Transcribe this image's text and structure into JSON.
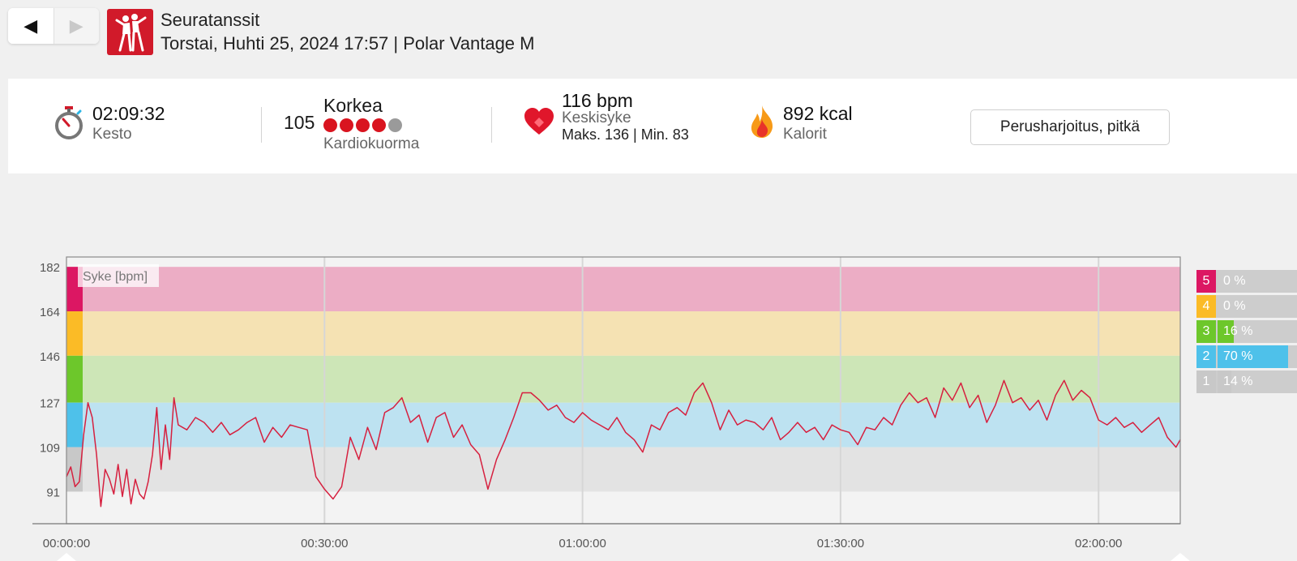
{
  "nav": {
    "prev_icon": "triangle-left-icon",
    "next_icon": "triangle-right-icon"
  },
  "header": {
    "sport_icon": "dancing-couple-icon",
    "sport_name": "Seuratanssit",
    "date_device": "Torstai, Huhti 25, 2024 17:57 | Polar Vantage M"
  },
  "summary": {
    "duration": {
      "value": "02:09:32",
      "label": "Kesto",
      "icon": "stopwatch-icon"
    },
    "cardio_load": {
      "value": "105",
      "level": "Korkea",
      "label": "Kardiokuorma",
      "filled_dots": 4,
      "total_dots": 5
    },
    "heart_rate": {
      "value": "116 bpm",
      "label": "Keskisyke",
      "minmax": "Maks. 136  |  Min. 83",
      "icon": "heart-icon"
    },
    "calories": {
      "value": "892 kcal",
      "label": "Kalorit",
      "icon": "flame-icon"
    },
    "training_benefit": "Perusharjoitus, pitkä"
  },
  "colors": {
    "zone1": "#c8c8c8",
    "zone2": "#4ec1ea",
    "zone3": "#6dc72b",
    "zone4": "#fbbb26",
    "zone5": "#dc1763",
    "line": "#d6203f",
    "accent": "#d11a2a"
  },
  "zones": [
    {
      "num": "5",
      "pct": "0 %",
      "fraction": 0.0
    },
    {
      "num": "4",
      "pct": "0 %",
      "fraction": 0.0
    },
    {
      "num": "3",
      "pct": "16 %",
      "fraction": 0.16
    },
    {
      "num": "2",
      "pct": "70 %",
      "fraction": 0.7
    },
    {
      "num": "1",
      "pct": "14 %",
      "fraction": 0.14
    }
  ],
  "chart_data": {
    "type": "line",
    "series_label": "Syke [bpm]",
    "y_ticks": [
      "182",
      "164",
      "146",
      "127",
      "109",
      "91"
    ],
    "x_ticks": [
      "00:00:00",
      "00:30:00",
      "01:00:00",
      "01:30:00",
      "02:00:00"
    ],
    "x_unit": "minutes",
    "x_range": [
      0,
      129.5
    ],
    "y_range": [
      78,
      186
    ],
    "zone_bands": [
      {
        "zone": 5,
        "from": 164,
        "to": 182
      },
      {
        "zone": 4,
        "from": 146,
        "to": 164
      },
      {
        "zone": 3,
        "from": 127,
        "to": 146
      },
      {
        "zone": 2,
        "from": 109,
        "to": 127
      },
      {
        "zone": 1,
        "from": 91,
        "to": 109
      }
    ],
    "x": [
      0,
      0.5,
      1,
      1.5,
      2,
      2.5,
      3,
      3.5,
      4,
      4.5,
      5,
      5.5,
      6,
      6.5,
      7,
      7.5,
      8,
      8.5,
      9,
      9.5,
      10,
      10.5,
      11,
      11.5,
      12,
      12.5,
      13,
      14,
      15,
      16,
      17,
      18,
      19,
      20,
      21,
      22,
      23,
      24,
      25,
      26,
      27,
      28,
      29,
      30,
      31,
      32,
      33,
      34,
      35,
      36,
      37,
      38,
      39,
      40,
      41,
      42,
      43,
      44,
      45,
      46,
      47,
      48,
      49,
      50,
      51,
      52,
      53,
      54,
      55,
      56,
      57,
      58,
      59,
      60,
      61,
      62,
      63,
      64,
      65,
      66,
      67,
      68,
      69,
      70,
      71,
      72,
      73,
      74,
      75,
      76,
      77,
      78,
      79,
      80,
      81,
      82,
      83,
      84,
      85,
      86,
      87,
      88,
      89,
      90,
      91,
      92,
      93,
      94,
      95,
      96,
      97,
      98,
      99,
      100,
      101,
      102,
      103,
      104,
      105,
      106,
      107,
      108,
      109,
      110,
      111,
      112,
      113,
      114,
      115,
      116,
      117,
      118,
      119,
      120,
      121,
      122,
      123,
      124,
      125,
      126,
      127,
      128,
      129,
      129.5
    ],
    "y": [
      97,
      101,
      93,
      95,
      114,
      127,
      121,
      106,
      85,
      100,
      96,
      90,
      102,
      89,
      100,
      86,
      96,
      90,
      88,
      95,
      106,
      125,
      100,
      118,
      104,
      129,
      118,
      116,
      121,
      119,
      115,
      119,
      114,
      116,
      119,
      121,
      111,
      117,
      113,
      118,
      117,
      116,
      97,
      92,
      88,
      93,
      113,
      104,
      117,
      108,
      123,
      125,
      129,
      119,
      122,
      111,
      121,
      123,
      113,
      118,
      110,
      106,
      92,
      104,
      112,
      121,
      131,
      131,
      128,
      124,
      126,
      121,
      119,
      123,
      120,
      118,
      116,
      121,
      115,
      112,
      107,
      118,
      116,
      123,
      125,
      122,
      131,
      135,
      127,
      116,
      124,
      118,
      120,
      119,
      116,
      121,
      112,
      115,
      119,
      115,
      117,
      112,
      118,
      116,
      115,
      110,
      117,
      116,
      121,
      118,
      126,
      131,
      127,
      129,
      121,
      133,
      128,
      135,
      125,
      130,
      119,
      126,
      136,
      127,
      129,
      124,
      128,
      120,
      130,
      136,
      128,
      132,
      129,
      120,
      118,
      121,
      117,
      119,
      115,
      118,
      121,
      113,
      109,
      112
    ]
  }
}
